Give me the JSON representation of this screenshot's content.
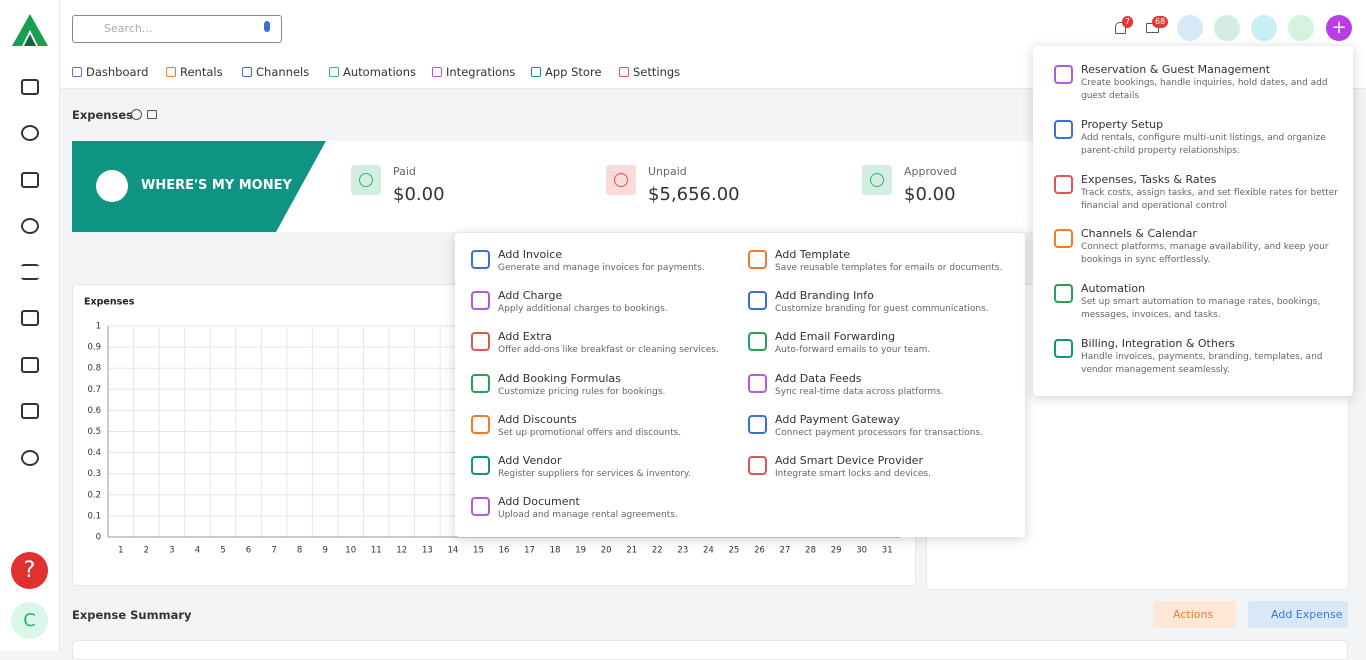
{
  "header": {
    "search_placeholder": "Search...",
    "notification_count": "7",
    "message_count": "68"
  },
  "nav": [
    "Dashboard",
    "Rentals",
    "Channels",
    "Automations",
    "Integrations",
    "App Store",
    "Settings"
  ],
  "page_title": "Expenses",
  "banner": "WHERE'S MY MONEY",
  "stats": [
    {
      "label": "Paid",
      "value": "$0.00"
    },
    {
      "label": "Unpaid",
      "value": "$5,656.00"
    },
    {
      "label": "Approved",
      "value": "$0.00"
    }
  ],
  "chart_data": {
    "type": "line",
    "title": "Expenses",
    "categories": [
      1,
      2,
      3,
      4,
      5,
      6,
      7,
      8,
      9,
      10,
      11,
      12,
      13,
      14,
      15,
      16,
      17,
      18,
      19,
      20,
      21,
      22,
      23,
      24,
      25,
      26,
      27,
      28,
      29,
      30,
      31
    ],
    "ylim": [
      0,
      1
    ],
    "yticks": [
      0,
      0.1,
      0.2,
      0.3,
      0.4,
      0.5,
      0.6,
      0.7,
      0.8,
      0.9,
      1
    ],
    "grid": true
  },
  "add_menu": {
    "left": [
      {
        "title": "Add Invoice",
        "description": "Generate and manage invoices for payments."
      },
      {
        "title": "Add Charge",
        "description": "Apply additional charges to bookings."
      },
      {
        "title": "Add Extra",
        "description": "Offer add-ons like breakfast or cleaning services."
      },
      {
        "title": "Add Booking Formulas",
        "description": "Customize pricing rules for bookings."
      },
      {
        "title": "Add Discounts",
        "description": "Set up promotional offers and discounts."
      },
      {
        "title": "Add Vendor",
        "description": "Register suppliers for services & inventory."
      },
      {
        "title": "Add Document",
        "description": "Upload and manage rental agreements."
      }
    ],
    "right": [
      {
        "title": "Add Template",
        "description": "Save reusable templates for emails or documents."
      },
      {
        "title": "Add Branding Info",
        "description": "Customize branding for guest communications."
      },
      {
        "title": "Add Email Forwarding",
        "description": "Auto-forward emails to your team."
      },
      {
        "title": "Add Data Feeds",
        "description": "Sync real-time data across platforms."
      },
      {
        "title": "Add Payment Gateway",
        "description": "Connect payment processors for transactions."
      },
      {
        "title": "Add Smart Device Provider",
        "description": "Integrate smart locks and devices."
      }
    ]
  },
  "module_menu": [
    {
      "title": "Reservation & Guest Management",
      "description": "Create bookings, handle inquiries, hold dates, and add guest details"
    },
    {
      "title": "Property Setup",
      "description": "Add rentals, configure multi-unit listings, and organize parent-child property relationships."
    },
    {
      "title": "Expenses, Tasks & Rates",
      "description": "Track costs, assign tasks, and set flexible rates for better financial and operational control"
    },
    {
      "title": "Channels & Calendar",
      "description": "Connect platforms, manage availability, and keep your bookings in sync effortlessly."
    },
    {
      "title": "Automation",
      "description": "Set up smart automation to manage rates, bookings, messages, invoices, and tasks."
    },
    {
      "title": "Billing, Integration & Others",
      "description": "Handle invoices, payments, branding, templates, and vendor management seamlessly."
    }
  ],
  "summary": {
    "title": "Expense Summary",
    "actions": "Actions",
    "add_expense": "Add Expense"
  },
  "help_icon": "?",
  "avatar": "C"
}
